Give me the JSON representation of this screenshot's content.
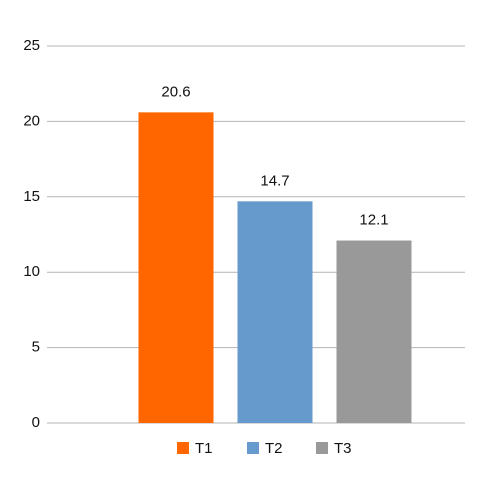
{
  "chart_data": {
    "type": "bar",
    "categories": [
      null
    ],
    "series": [
      {
        "name": "T1",
        "color": "#ff6600",
        "values": [
          20.6
        ]
      },
      {
        "name": "T2",
        "color": "#6699cc",
        "values": [
          14.7
        ]
      },
      {
        "name": "T3",
        "color": "#999999",
        "values": [
          12.1
        ]
      }
    ],
    "ylim": [
      0,
      25
    ],
    "yticks": [
      0,
      5,
      10,
      15,
      20,
      25
    ],
    "grid": true,
    "legend": "bottom"
  }
}
